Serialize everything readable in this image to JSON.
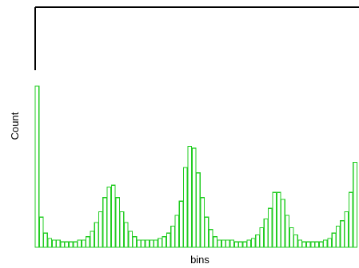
{
  "chart_data": {
    "type": "bar",
    "title": "",
    "xlabel": "bins",
    "ylabel": "Count",
    "bar_color": "#22cc22",
    "axis_color": "#000000",
    "grid": false,
    "ylim": [
      0,
      100
    ],
    "values": [
      91,
      17,
      8,
      5,
      4,
      4,
      3,
      3,
      3,
      3,
      4,
      4,
      6,
      9,
      14,
      20,
      28,
      34,
      35,
      28,
      20,
      14,
      9,
      6,
      4,
      4,
      4,
      4,
      4,
      5,
      6,
      8,
      12,
      18,
      26,
      45,
      57,
      56,
      42,
      28,
      17,
      10,
      6,
      4,
      4,
      4,
      4,
      3,
      3,
      3,
      4,
      5,
      7,
      11,
      16,
      22,
      31,
      31,
      27,
      18,
      11,
      7,
      4,
      3,
      3,
      3,
      3,
      3,
      4,
      5,
      8,
      12,
      15,
      20,
      31,
      48
    ]
  }
}
